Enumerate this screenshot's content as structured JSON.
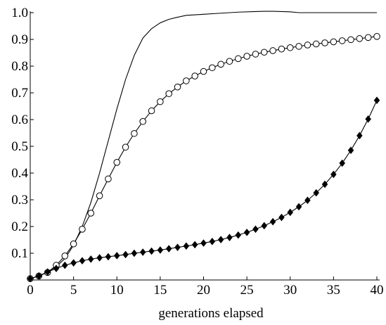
{
  "chart_data": {
    "type": "line",
    "title": "",
    "xlabel": "generations elapsed",
    "ylabel": "",
    "xlim": [
      0,
      40
    ],
    "ylim": [
      0,
      1.0
    ],
    "x_ticks": [
      0,
      5,
      10,
      15,
      20,
      25,
      30,
      35,
      40
    ],
    "x_tick_labels": [
      "0",
      "5",
      "10",
      "15",
      "20",
      "25",
      "30",
      "35",
      "40"
    ],
    "y_ticks": [
      0.1,
      0.2,
      0.3,
      0.4,
      0.5,
      0.6,
      0.7,
      0.8,
      0.9,
      1.0
    ],
    "y_tick_labels": [
      "0.1",
      "0.2",
      "0.3",
      "0.4",
      "0.5",
      "0.6",
      "0.7",
      "0.8",
      "0.9",
      "1.0"
    ],
    "grid": false,
    "legend": "none",
    "series": [
      {
        "marker": "none",
        "color": "#000000",
        "x": [
          0,
          1,
          2,
          3,
          4,
          5,
          6,
          7,
          8,
          9,
          10,
          11,
          12,
          13,
          14,
          15,
          16,
          17,
          18,
          19,
          20,
          22,
          24,
          26,
          27,
          28,
          29,
          30,
          31,
          32,
          34,
          36,
          38,
          40
        ],
        "y": [
          0.005,
          0.015,
          0.03,
          0.05,
          0.08,
          0.13,
          0.2,
          0.29,
          0.4,
          0.52,
          0.64,
          0.75,
          0.84,
          0.905,
          0.94,
          0.962,
          0.975,
          0.983,
          0.99,
          0.992,
          0.994,
          0.998,
          1.002,
          1.004,
          1.005,
          1.005,
          1.004,
          1.003,
          1.0,
          1.0,
          1.0,
          1.0,
          1.0,
          1.0
        ]
      },
      {
        "marker": "open-circle",
        "color": "#000000",
        "x": [
          0,
          1,
          2,
          3,
          4,
          5,
          6,
          7,
          8,
          9,
          10,
          11,
          12,
          13,
          14,
          15,
          16,
          17,
          18,
          19,
          20,
          21,
          22,
          23,
          24,
          25,
          26,
          27,
          28,
          29,
          30,
          31,
          32,
          33,
          34,
          35,
          36,
          37,
          38,
          39,
          40
        ],
        "y": [
          0.005,
          0.015,
          0.028,
          0.055,
          0.09,
          0.135,
          0.19,
          0.25,
          0.315,
          0.378,
          0.44,
          0.497,
          0.548,
          0.593,
          0.633,
          0.667,
          0.697,
          0.722,
          0.745,
          0.763,
          0.78,
          0.794,
          0.807,
          0.818,
          0.828,
          0.837,
          0.845,
          0.852,
          0.858,
          0.864,
          0.869,
          0.874,
          0.879,
          0.883,
          0.887,
          0.891,
          0.895,
          0.899,
          0.903,
          0.907,
          0.911
        ]
      },
      {
        "marker": "filled-diamond",
        "color": "#000000",
        "x": [
          0,
          1,
          2,
          3,
          4,
          5,
          6,
          7,
          8,
          9,
          10,
          11,
          12,
          13,
          14,
          15,
          16,
          17,
          18,
          19,
          20,
          21,
          22,
          23,
          24,
          25,
          26,
          27,
          28,
          29,
          30,
          31,
          32,
          33,
          34,
          35,
          36,
          37,
          38,
          39,
          40
        ],
        "y": [
          0.005,
          0.015,
          0.03,
          0.043,
          0.055,
          0.064,
          0.072,
          0.078,
          0.083,
          0.087,
          0.091,
          0.095,
          0.1,
          0.104,
          0.108,
          0.112,
          0.117,
          0.122,
          0.127,
          0.132,
          0.138,
          0.144,
          0.151,
          0.159,
          0.168,
          0.178,
          0.19,
          0.203,
          0.218,
          0.234,
          0.253,
          0.274,
          0.298,
          0.326,
          0.358,
          0.395,
          0.437,
          0.485,
          0.54,
          0.602,
          0.672
        ]
      }
    ]
  }
}
